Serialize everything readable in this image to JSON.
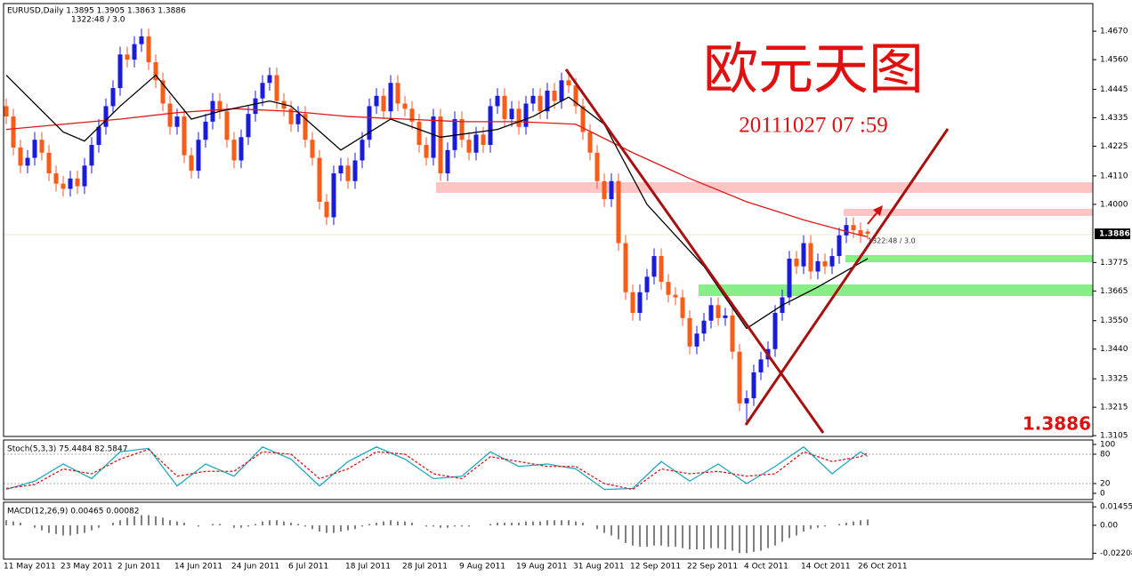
{
  "chart_data": {
    "type": "candlestick",
    "title": "欧元天图",
    "subtitle": "20111027 07 :59",
    "header": "EURUSD,Daily  1.3895 1.3905 1.3863 1.3886",
    "timer": "1322:48 / 3.0",
    "price_label": "1.3886",
    "categories": [
      "11 May 2011",
      null,
      null,
      null,
      null,
      null,
      null,
      null,
      "23 May 2011",
      null,
      null,
      null,
      null,
      null,
      null,
      null,
      "2 Jun 2011",
      null,
      null,
      null,
      null,
      null,
      null,
      null,
      "14 Jun 2011",
      null,
      null,
      null,
      null,
      null,
      null,
      null,
      "24 Jun 2011",
      null,
      null,
      null,
      null,
      null,
      null,
      null,
      "6 Jul 2011",
      null,
      null,
      null,
      null,
      null,
      null,
      null,
      "18 Jul 2011",
      null,
      null,
      null,
      null,
      null,
      null,
      null,
      "28 Jul 2011",
      null,
      null,
      null,
      null,
      null,
      null,
      null,
      "9 Aug 2011",
      null,
      null,
      null,
      null,
      null,
      null,
      null,
      "19 Aug 2011",
      null,
      null,
      null,
      null,
      null,
      null,
      null,
      "31 Aug 2011",
      null,
      null,
      null,
      null,
      null,
      null,
      null,
      "12 Sep 2011",
      null,
      null,
      null,
      null,
      null,
      null,
      null,
      "22 Sep 2011",
      null,
      null,
      null,
      null,
      null,
      null,
      null,
      "4 Oct 2011",
      null,
      null,
      null,
      null,
      null,
      null,
      null,
      "14 Oct 2011",
      null,
      null,
      null,
      null,
      null,
      null,
      null,
      "26 Oct 2011",
      null
    ],
    "open": [
      1.438,
      1.434,
      1.422,
      1.415,
      1.418,
      1.425,
      1.42,
      1.412,
      1.408,
      1.406,
      1.41,
      1.407,
      1.415,
      1.423,
      1.43,
      1.438,
      1.445,
      1.458,
      1.456,
      1.462,
      1.465,
      1.455,
      1.448,
      1.439,
      1.43,
      1.434,
      1.419,
      1.413,
      1.425,
      1.432,
      1.44,
      1.436,
      1.425,
      1.417,
      1.426,
      1.435,
      1.441,
      1.447,
      1.45,
      1.44,
      1.437,
      1.431,
      1.435,
      1.425,
      1.418,
      1.401,
      1.395,
      1.412,
      1.415,
      1.409,
      1.417,
      1.425,
      1.438,
      1.442,
      1.436,
      1.447,
      1.439,
      1.437,
      1.432,
      1.423,
      1.418,
      1.434,
      1.412,
      1.421,
      1.433,
      1.425,
      1.42,
      1.427,
      1.423,
      1.438,
      1.442,
      1.433,
      1.437,
      1.43,
      1.439,
      1.442,
      1.436,
      1.444,
      1.44,
      1.448,
      1.446,
      1.438,
      1.428,
      1.42,
      1.409,
      1.402,
      1.409,
      1.385,
      1.366,
      1.358,
      1.366,
      1.372,
      1.38,
      1.37,
      1.365,
      1.364,
      1.356,
      1.345,
      1.35,
      1.355,
      1.361,
      1.356,
      1.357,
      1.343,
      1.323,
      1.325,
      1.335,
      1.34,
      1.344,
      1.358,
      1.364,
      1.379,
      1.376,
      1.385,
      1.374,
      1.378,
      1.376,
      1.38,
      1.388,
      1.392,
      1.39,
      1.3895
    ],
    "high": [
      1.441,
      1.437,
      1.425,
      1.421,
      1.428,
      1.428,
      1.423,
      1.415,
      1.411,
      1.413,
      1.413,
      1.418,
      1.426,
      1.433,
      1.441,
      1.448,
      1.461,
      1.461,
      1.465,
      1.468,
      1.468,
      1.458,
      1.451,
      1.442,
      1.437,
      1.437,
      1.422,
      1.428,
      1.435,
      1.443,
      1.443,
      1.439,
      1.428,
      1.429,
      1.438,
      1.444,
      1.45,
      1.453,
      1.453,
      1.443,
      1.44,
      1.438,
      1.438,
      1.428,
      1.421,
      1.404,
      1.415,
      1.418,
      1.418,
      1.42,
      1.428,
      1.441,
      1.445,
      1.445,
      1.45,
      1.45,
      1.442,
      1.44,
      1.435,
      1.426,
      1.437,
      1.437,
      1.424,
      1.436,
      1.436,
      1.428,
      1.43,
      1.43,
      1.441,
      1.445,
      1.445,
      1.44,
      1.44,
      1.442,
      1.445,
      1.445,
      1.447,
      1.447,
      1.451,
      1.451,
      1.449,
      1.441,
      1.431,
      1.423,
      1.412,
      1.412,
      1.412,
      1.388,
      1.369,
      1.369,
      1.375,
      1.383,
      1.383,
      1.373,
      1.368,
      1.367,
      1.359,
      1.353,
      1.358,
      1.364,
      1.364,
      1.36,
      1.36,
      1.346,
      1.328,
      1.338,
      1.343,
      1.347,
      1.361,
      1.367,
      1.382,
      1.382,
      1.388,
      1.388,
      1.381,
      1.381,
      1.383,
      1.391,
      1.395,
      1.395,
      1.393,
      1.3905
    ],
    "low": [
      1.431,
      1.419,
      1.412,
      1.412,
      1.415,
      1.417,
      1.409,
      1.405,
      1.403,
      1.403,
      1.404,
      1.404,
      1.412,
      1.42,
      1.427,
      1.435,
      1.442,
      1.453,
      1.453,
      1.459,
      1.452,
      1.445,
      1.436,
      1.427,
      1.427,
      1.416,
      1.41,
      1.41,
      1.422,
      1.429,
      1.433,
      1.422,
      1.414,
      1.414,
      1.423,
      1.432,
      1.438,
      1.444,
      1.437,
      1.434,
      1.428,
      1.428,
      1.422,
      1.415,
      1.398,
      1.392,
      1.392,
      1.409,
      1.406,
      1.406,
      1.414,
      1.422,
      1.435,
      1.433,
      1.433,
      1.436,
      1.434,
      1.429,
      1.42,
      1.415,
      1.415,
      1.409,
      1.409,
      1.418,
      1.422,
      1.417,
      1.417,
      1.42,
      1.42,
      1.435,
      1.43,
      1.43,
      1.427,
      1.427,
      1.436,
      1.433,
      1.433,
      1.437,
      1.437,
      1.443,
      1.435,
      1.425,
      1.417,
      1.406,
      1.399,
      1.399,
      1.382,
      1.363,
      1.355,
      1.355,
      1.363,
      1.369,
      1.367,
      1.362,
      1.361,
      1.353,
      1.342,
      1.342,
      1.347,
      1.352,
      1.353,
      1.353,
      1.34,
      1.32,
      1.315,
      1.322,
      1.332,
      1.337,
      1.341,
      1.355,
      1.361,
      1.373,
      1.373,
      1.371,
      1.371,
      1.373,
      1.373,
      1.377,
      1.385,
      1.387,
      1.385,
      1.3863
    ],
    "close": [
      1.434,
      1.422,
      1.415,
      1.418,
      1.425,
      1.42,
      1.412,
      1.408,
      1.406,
      1.41,
      1.407,
      1.415,
      1.423,
      1.43,
      1.438,
      1.445,
      1.458,
      1.456,
      1.462,
      1.465,
      1.455,
      1.448,
      1.439,
      1.43,
      1.434,
      1.419,
      1.413,
      1.425,
      1.432,
      1.44,
      1.436,
      1.425,
      1.417,
      1.426,
      1.435,
      1.441,
      1.447,
      1.45,
      1.44,
      1.437,
      1.431,
      1.435,
      1.425,
      1.418,
      1.401,
      1.395,
      1.412,
      1.415,
      1.409,
      1.417,
      1.425,
      1.438,
      1.442,
      1.436,
      1.447,
      1.439,
      1.437,
      1.432,
      1.423,
      1.418,
      1.434,
      1.412,
      1.421,
      1.433,
      1.425,
      1.42,
      1.427,
      1.423,
      1.438,
      1.442,
      1.433,
      1.437,
      1.43,
      1.439,
      1.442,
      1.436,
      1.444,
      1.44,
      1.448,
      1.446,
      1.438,
      1.428,
      1.42,
      1.409,
      1.402,
      1.409,
      1.385,
      1.366,
      1.358,
      1.366,
      1.372,
      1.38,
      1.37,
      1.365,
      1.364,
      1.356,
      1.345,
      1.35,
      1.355,
      1.361,
      1.356,
      1.357,
      1.343,
      1.323,
      1.325,
      1.335,
      1.34,
      1.344,
      1.358,
      1.364,
      1.379,
      1.376,
      1.385,
      1.374,
      1.378,
      1.376,
      1.38,
      1.388,
      1.392,
      1.39,
      1.388,
      1.3886
    ],
    "up_color": "#1a1ae0",
    "down_color": "#ff5a1a",
    "ylim": [
      1.3102,
      1.4777
    ],
    "yticks": [
      {
        "value": 1.467,
        "label": "1.4670"
      },
      {
        "value": 1.456,
        "label": "1.4560"
      },
      1.4445,
      1.4335,
      1.4225,
      {
        "value": 1.411,
        "label": "1.4110"
      },
      {
        "value": 1.4,
        "label": "1.4000"
      },
      1.3775,
      1.3665,
      {
        "value": 1.355,
        "label": "1.3550"
      },
      {
        "value": 1.344,
        "label": "1.3440"
      },
      1.3325,
      1.3215,
      1.3105
    ],
    "moving_averages": [
      {
        "color": "#e01818",
        "x": [
          0,
          8,
          16,
          24,
          32,
          40,
          48,
          56,
          64,
          72,
          80,
          88,
          96,
          104,
          112,
          120,
          121
        ],
        "values": [
          1.429,
          1.431,
          1.433,
          1.4355,
          1.437,
          1.436,
          1.434,
          1.433,
          1.432,
          1.432,
          1.431,
          1.42,
          1.41,
          1.401,
          1.394,
          1.388,
          1.3875
        ]
      },
      {
        "color": "#000000",
        "x": [
          0,
          8,
          11,
          16,
          21,
          26,
          30,
          37,
          40,
          47,
          54,
          61,
          69,
          74,
          79,
          84,
          90,
          98,
          104,
          109,
          114,
          121
        ],
        "values": [
          1.45,
          1.428,
          1.4245,
          1.438,
          1.45,
          1.433,
          1.436,
          1.44,
          1.438,
          1.421,
          1.433,
          1.426,
          1.429,
          1.434,
          1.4415,
          1.431,
          1.4,
          1.376,
          1.352,
          1.361,
          1.368,
          1.379
        ]
      }
    ],
    "stochastic": {
      "label": "Stoch(5,3,3) 75.4484 82.5847",
      "ylim": [
        0,
        100
      ],
      "yticks": [
        0,
        20,
        80,
        100
      ],
      "main": {
        "color": "#20a8c0",
        "x": [
          0,
          4,
          8,
          12,
          16,
          20,
          24,
          28,
          32,
          36,
          40,
          44,
          48,
          52,
          56,
          60,
          64,
          68,
          72,
          76,
          80,
          84,
          88,
          92,
          96,
          100,
          104,
          108,
          112,
          116,
          120,
          121
        ],
        "values": [
          8,
          25,
          60,
          30,
          85,
          92,
          15,
          60,
          35,
          95,
          70,
          15,
          65,
          95,
          70,
          30,
          35,
          85,
          55,
          60,
          50,
          8,
          10,
          65,
          25,
          60,
          20,
          55,
          95,
          40,
          85,
          75.4484
        ]
      },
      "signal": {
        "color": "#e01818",
        "x": [
          0,
          4,
          8,
          12,
          16,
          20,
          24,
          28,
          32,
          36,
          40,
          44,
          48,
          52,
          56,
          60,
          64,
          68,
          72,
          76,
          80,
          84,
          88,
          92,
          96,
          100,
          104,
          108,
          112,
          116,
          120,
          121
        ],
        "values": [
          10,
          18,
          50,
          40,
          70,
          90,
          35,
          45,
          45,
          85,
          80,
          30,
          50,
          85,
          80,
          40,
          30,
          75,
          65,
          55,
          55,
          20,
          8,
          50,
          40,
          45,
          35,
          40,
          85,
          65,
          75,
          82.5847
        ]
      }
    },
    "macd": {
      "label": "MACD(12,26,9) 0.00465 0.00082",
      "ylim": [
        -0.026,
        0.0175
      ],
      "yticks": [
        0.01455,
        {
          "value": 0,
          "label": "0.00"
        },
        -0.02208
      ],
      "values": [
        0.004,
        0.003,
        0.002,
        0.0,
        -0.002,
        -0.004,
        -0.006,
        -0.007,
        -0.008,
        -0.008,
        -0.007,
        -0.006,
        -0.004,
        -0.002,
        0.0,
        0.002,
        0.004,
        0.006,
        0.007,
        0.008,
        0.008,
        0.007,
        0.006,
        0.004,
        0.003,
        0.002,
        0.0,
        -0.001,
        0.0,
        0.001,
        0.001,
        0.0,
        -0.002,
        -0.002,
        -0.001,
        0.001,
        0.003,
        0.004,
        0.004,
        0.003,
        0.002,
        0.001,
        -0.001,
        -0.003,
        -0.005,
        -0.006,
        -0.006,
        -0.005,
        -0.004,
        -0.003,
        -0.001,
        0.001,
        0.002,
        0.003,
        0.004,
        0.003,
        0.003,
        0.002,
        0.0,
        -0.001,
        -0.001,
        -0.002,
        -0.002,
        -0.001,
        -0.001,
        -0.001,
        0.0,
        0.0,
        0.001,
        0.002,
        0.002,
        0.002,
        0.002,
        0.003,
        0.003,
        0.003,
        0.004,
        0.004,
        0.004,
        0.004,
        0.003,
        0.002,
        0.0,
        -0.003,
        -0.006,
        -0.008,
        -0.011,
        -0.014,
        -0.016,
        -0.017,
        -0.017,
        -0.016,
        -0.016,
        -0.017,
        -0.017,
        -0.018,
        -0.019,
        -0.019,
        -0.019,
        -0.018,
        -0.018,
        -0.019,
        -0.02,
        -0.022,
        -0.022,
        -0.021,
        -0.02,
        -0.018,
        -0.016,
        -0.013,
        -0.01,
        -0.008,
        -0.005,
        -0.003,
        -0.002,
        -0.001,
        0.0,
        0.001,
        0.002,
        0.003,
        0.004,
        0.00465
      ]
    }
  }
}
